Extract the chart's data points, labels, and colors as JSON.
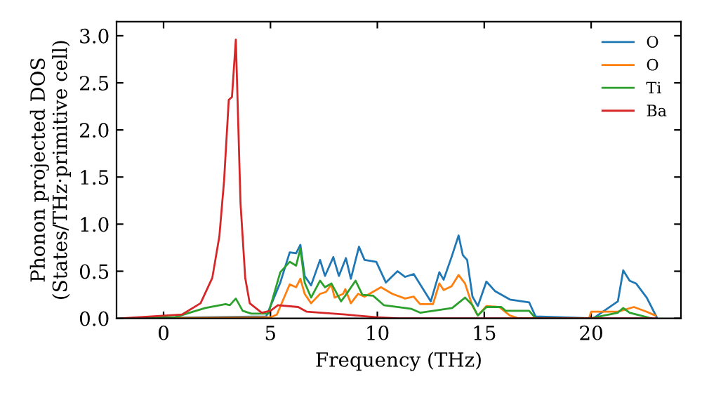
{
  "chart_data": {
    "type": "line",
    "xlabel": "Frequency (THz)",
    "ylabel": "Phonon projected DOS\n(States/THz·primitive cell)",
    "xlim": [
      -2.2,
      24.2
    ],
    "ylim": [
      0,
      3.15
    ],
    "xticks": [
      0,
      5,
      10,
      15,
      20
    ],
    "yticks": [
      {
        "value": 0,
        "label": "0.0"
      },
      0.5,
      {
        "value": 1,
        "label": "1.0"
      },
      1.5,
      {
        "value": 2,
        "label": "2.0"
      },
      2.5,
      {
        "value": 3,
        "label": "3.0"
      }
    ],
    "grid": false,
    "legend": "top right",
    "marker": "none",
    "line_style": "solid",
    "series": [
      {
        "name": "O",
        "color": "#1f77b4",
        "x": [
          -2,
          4.8,
          5.46,
          5.9,
          6.2,
          6.4,
          6.6,
          6.9,
          7.32,
          7.55,
          7.94,
          8.2,
          8.53,
          8.76,
          9.14,
          9.4,
          9.95,
          10.4,
          10.94,
          11.3,
          11.7,
          12.5,
          12.9,
          13.1,
          13.47,
          13.8,
          14.0,
          14.2,
          14.45,
          14.7,
          15.1,
          15.5,
          16.2,
          17.1,
          17.4,
          20.1,
          21.25,
          21.5,
          21.8,
          22.1,
          22.6,
          23.07
        ],
        "values": [
          0,
          0.02,
          0.38,
          0.7,
          0.69,
          0.78,
          0.45,
          0.35,
          0.62,
          0.45,
          0.65,
          0.45,
          0.64,
          0.42,
          0.76,
          0.62,
          0.6,
          0.38,
          0.5,
          0.44,
          0.47,
          0.18,
          0.49,
          0.41,
          0.65,
          0.88,
          0.67,
          0.62,
          0.23,
          0.13,
          0.39,
          0.29,
          0.2,
          0.17,
          0.02,
          0.0,
          0.18,
          0.51,
          0.4,
          0.37,
          0.22,
          0.01
        ]
      },
      {
        "name": "O",
        "color": "#ff7f0e",
        "x": [
          -2,
          5.0,
          5.3,
          5.9,
          6.2,
          6.4,
          6.6,
          6.9,
          7.32,
          7.6,
          7.85,
          8.0,
          8.4,
          8.5,
          8.76,
          9.1,
          9.4,
          10.17,
          10.7,
          11.3,
          11.7,
          12.0,
          12.6,
          12.9,
          13.1,
          13.47,
          13.8,
          14.1,
          14.45,
          14.7,
          15.1,
          15.7,
          16.2,
          16.6,
          19.9,
          20.0,
          21.25,
          22.0,
          22.6,
          23.0
        ],
        "values": [
          0,
          0.01,
          0.04,
          0.36,
          0.33,
          0.42,
          0.26,
          0.16,
          0.26,
          0.28,
          0.36,
          0.22,
          0.26,
          0.31,
          0.16,
          0.26,
          0.23,
          0.33,
          0.26,
          0.21,
          0.23,
          0.15,
          0.15,
          0.37,
          0.3,
          0.34,
          0.46,
          0.37,
          0.13,
          0.03,
          0.13,
          0.12,
          0.03,
          0.0,
          0.0,
          0.07,
          0.07,
          0.12,
          0.07,
          0.03
        ]
      },
      {
        "name": "Ti",
        "color": "#2ca02c",
        "x": [
          -2,
          0.5,
          1.95,
          2.9,
          3.1,
          3.38,
          3.7,
          4.1,
          4.9,
          5.46,
          5.9,
          6.2,
          6.4,
          6.6,
          6.9,
          7.32,
          7.55,
          7.85,
          8.3,
          8.5,
          8.98,
          9.3,
          9.8,
          10.3,
          11.3,
          11.6,
          12.0,
          12.9,
          13.5,
          14.1,
          14.45,
          14.7,
          15.1,
          15.8,
          16.0,
          17.1,
          17.4,
          20.0,
          20.4,
          21.25,
          21.5,
          21.8,
          22.8
        ],
        "values": [
          0,
          0.01,
          0.11,
          0.15,
          0.14,
          0.21,
          0.08,
          0.05,
          0.05,
          0.49,
          0.6,
          0.56,
          0.74,
          0.38,
          0.22,
          0.4,
          0.33,
          0.37,
          0.18,
          0.24,
          0.4,
          0.25,
          0.24,
          0.14,
          0.11,
          0.1,
          0.06,
          0.09,
          0.11,
          0.22,
          0.14,
          0.03,
          0.12,
          0.12,
          0.08,
          0.08,
          0.0,
          0.0,
          0.02,
          0.06,
          0.11,
          0.06,
          0.0
        ]
      },
      {
        "name": "Ba",
        "color": "#d62728",
        "x": [
          -2,
          0.86,
          1.73,
          2.28,
          2.61,
          2.83,
          3.05,
          3.2,
          3.38,
          3.6,
          3.82,
          4.03,
          4.59,
          5.0,
          5.35,
          6.3,
          6.7,
          8.5,
          10.0,
          11.0,
          23.0
        ],
        "values": [
          0,
          0.04,
          0.16,
          0.43,
          0.87,
          1.46,
          2.32,
          2.35,
          2.96,
          1.22,
          0.43,
          0.16,
          0.06,
          0.08,
          0.14,
          0.12,
          0.07,
          0.04,
          0.01,
          0.0,
          0.0
        ]
      }
    ]
  }
}
